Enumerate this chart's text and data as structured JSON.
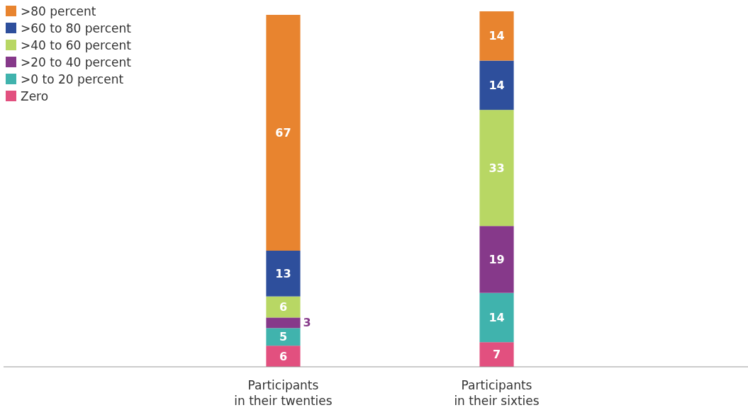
{
  "chart_data": {
    "type": "bar",
    "stacked": true,
    "data_labels": true,
    "legend": "top left",
    "categories": [
      "Participants\nin their twenties",
      "Participants\nin their sixties"
    ],
    "series": [
      {
        "name": "Zero",
        "color": "#e2507f",
        "values": [
          6,
          7
        ]
      },
      {
        "name": ">0 to 20 percent",
        "color": "#40b3ad",
        "values": [
          5,
          14
        ]
      },
      {
        "name": ">20 to 40 percent",
        "color": "#86398a",
        "values": [
          3,
          19
        ]
      },
      {
        "name": ">40 to 60 percent",
        "color": "#b8d764",
        "values": [
          6,
          33
        ]
      },
      {
        "name": ">60 to 80 percent",
        "color": "#2e4f9c",
        "values": [
          13,
          14
        ]
      },
      {
        "name": ">80 percent",
        "color": "#e8842f",
        "values": [
          67,
          14
        ]
      }
    ]
  }
}
